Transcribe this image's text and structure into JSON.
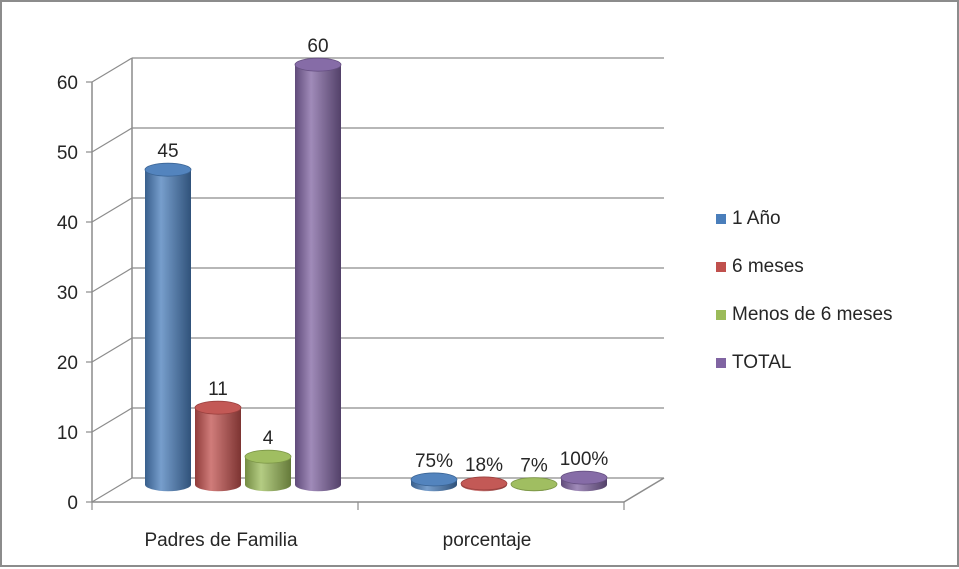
{
  "chart_data": {
    "type": "bar",
    "categories": [
      "Padres de Familia",
      "porcentaje"
    ],
    "series": [
      {
        "name": "1 Año",
        "color": "#4a7ebb",
        "values": [
          45,
          0.75
        ],
        "labels": [
          "45",
          "75%"
        ]
      },
      {
        "name": "6 meses",
        "color": "#c0504d",
        "values": [
          11,
          0.18
        ],
        "labels": [
          "11",
          "18%"
        ]
      },
      {
        "name": "Menos de 6 meses",
        "color": "#9bbb59",
        "values": [
          4,
          0.07
        ],
        "labels": [
          "4",
          "7%"
        ]
      },
      {
        "name": "TOTAL",
        "color": "#8064a2",
        "values": [
          60,
          1
        ],
        "labels": [
          "60",
          "100%"
        ]
      }
    ],
    "ylim": [
      0,
      60
    ],
    "yticks": [
      0,
      10,
      20,
      30,
      40,
      50,
      60
    ],
    "grid": true,
    "legend": "right",
    "style": "3d-cylinder"
  }
}
